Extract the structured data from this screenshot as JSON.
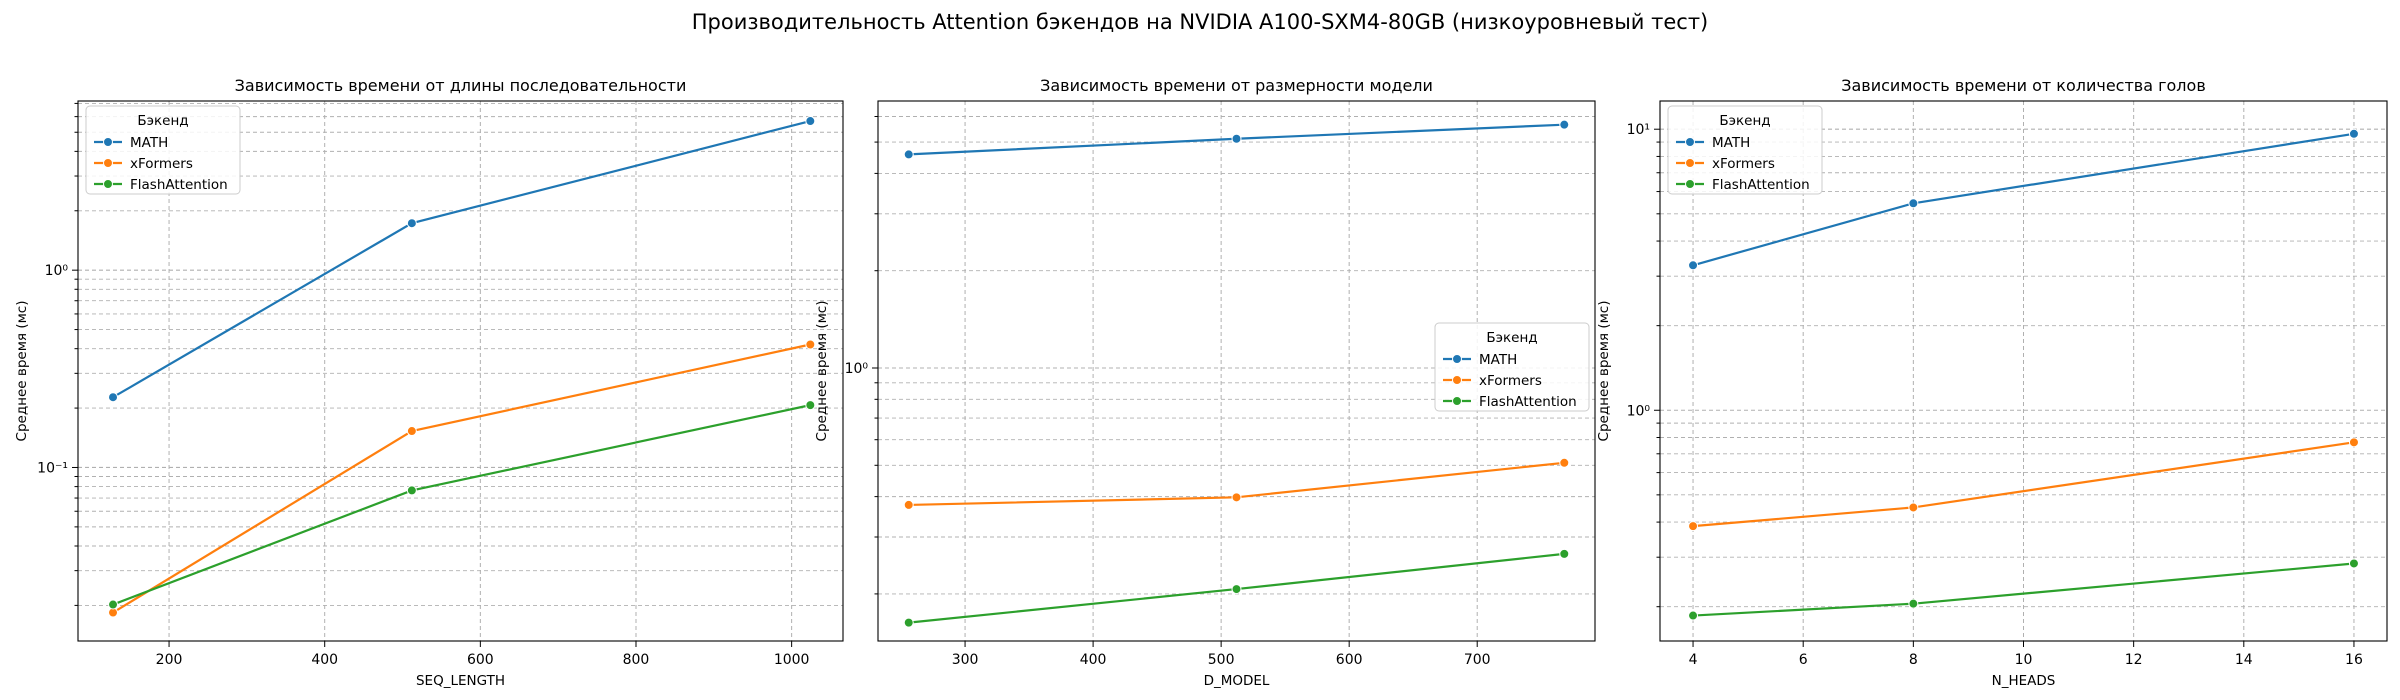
{
  "suptitle": "Производительность Attention бэкендов на NVIDIA A100-SXM4-80GB (низкоуровневый тест)",
  "colors": {
    "MATH": "#1f77b4",
    "xFormers": "#ff7f0e",
    "FlashAttention": "#2ca02c"
  },
  "chart_data": [
    {
      "type": "line",
      "title": "Зависимость времени от длины последовательности",
      "xlabel": "SEQ_LENGTH",
      "ylabel": "Среднее время (мс)",
      "yscale": "log",
      "xlim": [
        83,
        1066
      ],
      "ylim": [
        0.0132,
        7.2
      ],
      "xticks": [
        200,
        400,
        600,
        800,
        1000
      ],
      "yticks": [
        {
          "v": 0.1,
          "label": "10⁻¹"
        },
        {
          "v": 1,
          "label": "10⁰"
        }
      ],
      "grid": true,
      "legend": {
        "title": "Бэкенд",
        "placement": "upper-left"
      },
      "x": [
        128,
        512,
        1024
      ],
      "series": [
        {
          "name": "MATH",
          "values": [
            0.227,
            1.73,
            5.7
          ]
        },
        {
          "name": "xFormers",
          "values": [
            0.0184,
            0.153,
            0.42
          ]
        },
        {
          "name": "FlashAttention",
          "values": [
            0.0202,
            0.0765,
            0.207
          ]
        }
      ]
    },
    {
      "type": "line",
      "title": "Зависимость времени от размерности модели",
      "xlabel": "D_MODEL",
      "ylabel": "Среднее время (мс)",
      "yscale": "log",
      "xlim": [
        232,
        792
      ],
      "ylim": [
        0.143,
        6.7
      ],
      "xticks": [
        300,
        400,
        500,
        600,
        700
      ],
      "yticks": [
        {
          "v": 1,
          "label": "10⁰"
        }
      ],
      "grid": true,
      "legend": {
        "title": "Бэкенд",
        "placement": "center-right"
      },
      "x": [
        256,
        512,
        768
      ],
      "series": [
        {
          "name": "MATH",
          "values": [
            4.58,
            5.12,
            5.66
          ]
        },
        {
          "name": "xFormers",
          "values": [
            0.377,
            0.398,
            0.509
          ]
        },
        {
          "name": "FlashAttention",
          "values": [
            0.163,
            0.207,
            0.266
          ]
        }
      ]
    },
    {
      "type": "line",
      "title": "Зависимость времени от количества голов",
      "xlabel": "N_HEADS",
      "ylabel": "Среднее время (мс)",
      "yscale": "log",
      "xlim": [
        3.4,
        16.6
      ],
      "ylim": [
        0.151,
        12.6
      ],
      "xticks": [
        4,
        6,
        8,
        10,
        12,
        14,
        16
      ],
      "yticks": [
        {
          "v": 1,
          "label": "10⁰"
        },
        {
          "v": 10,
          "label": "10¹"
        }
      ],
      "grid": true,
      "legend": {
        "title": "Бэкенд",
        "placement": "upper-left"
      },
      "x": [
        4,
        8,
        16
      ],
      "series": [
        {
          "name": "MATH",
          "values": [
            3.28,
            5.45,
            9.63
          ]
        },
        {
          "name": "xFormers",
          "values": [
            0.387,
            0.451,
            0.769
          ]
        },
        {
          "name": "FlashAttention",
          "values": [
            0.186,
            0.205,
            0.285
          ]
        }
      ]
    }
  ]
}
